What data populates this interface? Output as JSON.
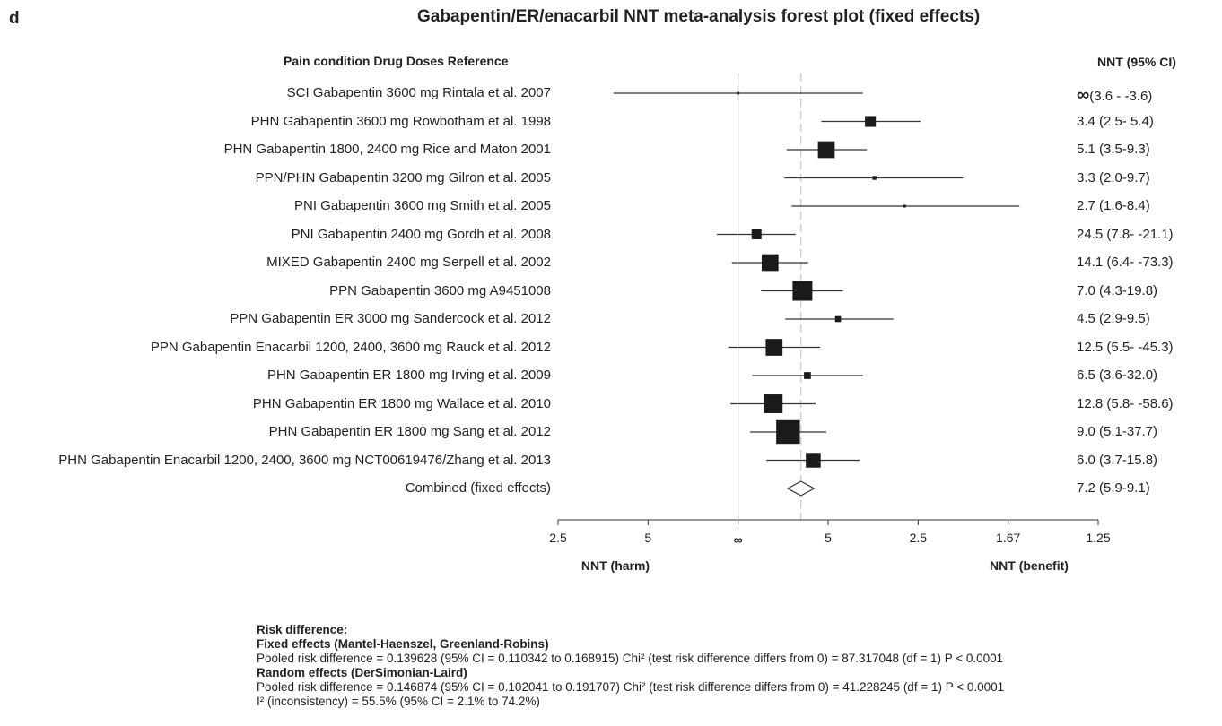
{
  "panel_letter": "d",
  "figure_title": "Gabapentin/ER/enacarbil   NNT meta-analysis forest plot (fixed effects)",
  "column_headers": {
    "left": "Pain condition Drug Doses Reference",
    "right": "NNT (95% CI)"
  },
  "chart_data": {
    "type": "forest",
    "x_scale": "risk difference (axis labelled as NNT = 1/RD)",
    "x_range": [
      -0.4,
      0.8
    ],
    "reference_line": 0,
    "combined_line": 0.139628,
    "x_ticks": [
      {
        "value": -0.4,
        "label": "2.5"
      },
      {
        "value": -0.2,
        "label": "5"
      },
      {
        "value": 0,
        "label": "∞"
      },
      {
        "value": 0.2,
        "label": "5"
      },
      {
        "value": 0.4,
        "label": "2.5"
      },
      {
        "value": 0.6,
        "label": "1.67"
      },
      {
        "value": 0.8,
        "label": "1.25"
      }
    ],
    "x_label_left": "NNT (harm)",
    "x_label_right": "NNT (benefit)",
    "studies": [
      {
        "label": "SCI Gabapentin 3600 mg Rintala et al. 2007",
        "rd": 0.0,
        "lo": -0.277,
        "hi": 0.277,
        "weight": 0.05,
        "nnt": "∞",
        "nnt_ci": "(3.6 - -3.6)"
      },
      {
        "label": "PHN Gabapentin 3600 mg Rowbotham et al. 1998",
        "rd": 0.294,
        "lo": 0.185,
        "hi": 0.405,
        "weight": 0.55,
        "nnt": "3.4 (2.5- 5.4)",
        "nnt_ci": ""
      },
      {
        "label": "PHN Gabapentin 1800, 2400 mg Rice and Maton 2001",
        "rd": 0.196,
        "lo": 0.108,
        "hi": 0.286,
        "weight": 0.85,
        "nnt": "5.1 (3.5-9.3)",
        "nnt_ci": ""
      },
      {
        "label": "PPN/PHN Gabapentin 3200 mg Gilron et al. 2005",
        "rd": 0.303,
        "lo": 0.103,
        "hi": 0.5,
        "weight": 0.2,
        "nnt": "3.3 (2.0-9.7)",
        "nnt_ci": ""
      },
      {
        "label": "PNI Gabapentin 3600 mg Smith et al. 2005",
        "rd": 0.37,
        "lo": 0.119,
        "hi": 0.625,
        "weight": 0.1,
        "nnt": "2.7 (1.6-8.4)",
        "nnt_ci": ""
      },
      {
        "label": "PNI Gabapentin 2400 mg Gordh et al. 2008",
        "rd": 0.041,
        "lo": -0.047,
        "hi": 0.128,
        "weight": 0.5,
        "nnt": "24.5 (7.8- -21.1)",
        "nnt_ci": ""
      },
      {
        "label": "MIXED Gabapentin 2400 mg Serpell et al. 2002",
        "rd": 0.071,
        "lo": -0.014,
        "hi": 0.156,
        "weight": 0.85,
        "nnt": "14.1 (6.4- -73.3)",
        "nnt_ci": ""
      },
      {
        "label": "PPN Gabapentin 3600 mg A9451008",
        "rd": 0.143,
        "lo": 0.051,
        "hi": 0.233,
        "weight": 1.0,
        "nnt": "7.0 (4.3-19.8)",
        "nnt_ci": ""
      },
      {
        "label": "PPN Gabapentin ER 3000 mg Sandercock et al. 2012",
        "rd": 0.222,
        "lo": 0.105,
        "hi": 0.345,
        "weight": 0.3,
        "nnt": "4.5 (2.9-9.5)",
        "nnt_ci": ""
      },
      {
        "label": "PPN Gabapentin Enacarbil 1200, 2400, 3600 mg Rauck et al. 2012",
        "rd": 0.08,
        "lo": -0.022,
        "hi": 0.182,
        "weight": 0.85,
        "nnt": "12.5 (5.5- -45.3)",
        "nnt_ci": ""
      },
      {
        "label": "PHN Gabapentin ER 1800 mg Irving et al. 2009",
        "rd": 0.154,
        "lo": 0.031,
        "hi": 0.278,
        "weight": 0.35,
        "nnt": "6.5 (3.6-32.0)",
        "nnt_ci": ""
      },
      {
        "label": "PHN Gabapentin ER 1800 mg Wallace et al. 2010",
        "rd": 0.078,
        "lo": -0.017,
        "hi": 0.172,
        "weight": 0.95,
        "nnt": "12.8 (5.8- -58.6)",
        "nnt_ci": ""
      },
      {
        "label": "PHN Gabapentin ER 1800 mg Sang et al. 2012",
        "rd": 0.111,
        "lo": 0.027,
        "hi": 0.196,
        "weight": 1.2,
        "nnt": "9.0 (5.1-37.7)",
        "nnt_ci": ""
      },
      {
        "label": "PHN Gabapentin Enacarbil 1200, 2400, 3600 mg NCT00619476/Zhang et al. 2013",
        "rd": 0.167,
        "lo": 0.063,
        "hi": 0.27,
        "weight": 0.75,
        "nnt": "6.0 (3.7-15.8)",
        "nnt_ci": ""
      }
    ],
    "combined": {
      "label": "Combined (fixed effects)",
      "rd": 0.139628,
      "lo": 0.110342,
      "hi": 0.168915,
      "nnt": "7.2 (5.9-9.1)"
    }
  },
  "stats": {
    "heading": "Risk difference:",
    "fixed_heading": "Fixed effects (Mantel-Haenszel, Greenland-Robins)",
    "fixed_text": "Pooled risk difference = 0.139628 (95% CI = 0.110342 to 0.168915) Chi² (test risk difference differs from 0) = 87.317048  (df = 1)  P < 0.0001",
    "random_heading": "Random effects (DerSimonian-Laird)",
    "random_text": "Pooled risk difference = 0.146874 (95% CI = 0.102041 to 0.191707) Chi² (test risk difference differs from 0) = 41.228245  (df = 1)  P < 0.0001",
    "inconsistency_text": "I² (inconsistency) = 55.5% (95% CI = 2.1% to 74.2%)"
  }
}
